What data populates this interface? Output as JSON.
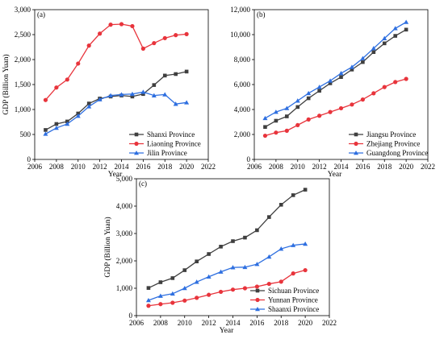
{
  "chart_data": [
    {
      "type": "line",
      "panel_label": "(a)",
      "xlabel": "Year",
      "ylabel": "GDP (Billion Yuan)",
      "xlim": [
        2006,
        2022
      ],
      "ylim": [
        0,
        3000
      ],
      "xticks": [
        2006,
        2008,
        2010,
        2012,
        2014,
        2016,
        2018,
        2020,
        2022
      ],
      "yticks": [
        0,
        500,
        1000,
        1500,
        2000,
        2500,
        3000
      ],
      "ytick_labels": [
        "0",
        "500",
        "1,000",
        "1,500",
        "2,000",
        "2,500",
        "3,000"
      ],
      "legend_position": "bottom-right",
      "x": [
        2007,
        2008,
        2009,
        2010,
        2011,
        2012,
        2013,
        2014,
        2015,
        2016,
        2017,
        2018,
        2019,
        2020
      ],
      "series": [
        {
          "name": "Shanxi Province",
          "color": "#3f3f3f",
          "marker": "square",
          "values": [
            590,
            710,
            760,
            920,
            1120,
            1220,
            1260,
            1280,
            1260,
            1310,
            1490,
            1680,
            1710,
            1760
          ]
        },
        {
          "name": "Liaoning Province",
          "color": "#e8343c",
          "marker": "circle",
          "values": [
            1190,
            1440,
            1600,
            1920,
            2280,
            2520,
            2700,
            2710,
            2670,
            2220,
            2330,
            2430,
            2490,
            2510
          ]
        },
        {
          "name": "Jilin Province",
          "color": "#2e6fe0",
          "marker": "triangle",
          "values": [
            510,
            630,
            710,
            870,
            1060,
            1200,
            1280,
            1300,
            1310,
            1350,
            1280,
            1300,
            1110,
            1140
          ]
        }
      ]
    },
    {
      "type": "line",
      "panel_label": "(b)",
      "xlabel": "Year",
      "ylabel": "",
      "xlim": [
        2006,
        2022
      ],
      "ylim": [
        0,
        12000
      ],
      "xticks": [
        2006,
        2008,
        2010,
        2012,
        2014,
        2016,
        2018,
        2020,
        2022
      ],
      "yticks": [
        0,
        2000,
        4000,
        6000,
        8000,
        10000,
        12000
      ],
      "ytick_labels": [
        "0",
        "2,000",
        "4,000",
        "6,000",
        "8,000",
        "10,000",
        "12,000"
      ],
      "legend_position": "bottom-right",
      "x": [
        2007,
        2008,
        2009,
        2010,
        2011,
        2012,
        2013,
        2014,
        2015,
        2016,
        2017,
        2018,
        2019,
        2020
      ],
      "series": [
        {
          "name": "Jiangsu Province",
          "color": "#3f3f3f",
          "marker": "square",
          "values": [
            2600,
            3100,
            3450,
            4200,
            4900,
            5500,
            6100,
            6600,
            7200,
            7800,
            8600,
            9300,
            9900,
            10400
          ]
        },
        {
          "name": "Zhejiang Province",
          "color": "#e8343c",
          "marker": "circle",
          "values": [
            1900,
            2150,
            2300,
            2750,
            3200,
            3500,
            3800,
            4100,
            4400,
            4800,
            5300,
            5800,
            6200,
            6450
          ]
        },
        {
          "name": "Guangdong Province",
          "color": "#2e6fe0",
          "marker": "triangle",
          "values": [
            3300,
            3800,
            4100,
            4700,
            5300,
            5800,
            6300,
            6900,
            7400,
            8100,
            8900,
            9700,
            10500,
            11000
          ]
        }
      ]
    },
    {
      "type": "line",
      "panel_label": "(c)",
      "xlabel": "Year",
      "ylabel": "GDP (Billion Yuan)",
      "xlim": [
        2006,
        2022
      ],
      "ylim": [
        0,
        5000
      ],
      "xticks": [
        2006,
        2008,
        2010,
        2012,
        2014,
        2016,
        2018,
        2020,
        2022
      ],
      "yticks": [
        0,
        1000,
        2000,
        3000,
        4000,
        5000
      ],
      "ytick_labels": [
        "0",
        "1,000",
        "2,000",
        "3,000",
        "4,000",
        "5,000"
      ],
      "legend_position": "bottom-right",
      "x": [
        2007,
        2008,
        2009,
        2010,
        2011,
        2012,
        2013,
        2014,
        2015,
        2016,
        2017,
        2018,
        2019,
        2020
      ],
      "series": [
        {
          "name": "Sichuan Province",
          "color": "#3f3f3f",
          "marker": "square",
          "values": [
            1010,
            1220,
            1370,
            1660,
            1980,
            2250,
            2520,
            2720,
            2850,
            3120,
            3600,
            4050,
            4400,
            4600
          ]
        },
        {
          "name": "Yunnan Province",
          "color": "#e8343c",
          "marker": "circle",
          "values": [
            360,
            420,
            470,
            550,
            650,
            760,
            870,
            950,
            1000,
            1060,
            1160,
            1240,
            1540,
            1660
          ]
        },
        {
          "name": "Shaanxi Province",
          "color": "#2e6fe0",
          "marker": "triangle",
          "values": [
            560,
            720,
            800,
            1000,
            1230,
            1420,
            1600,
            1760,
            1770,
            1880,
            2150,
            2440,
            2570,
            2620
          ]
        }
      ]
    }
  ]
}
